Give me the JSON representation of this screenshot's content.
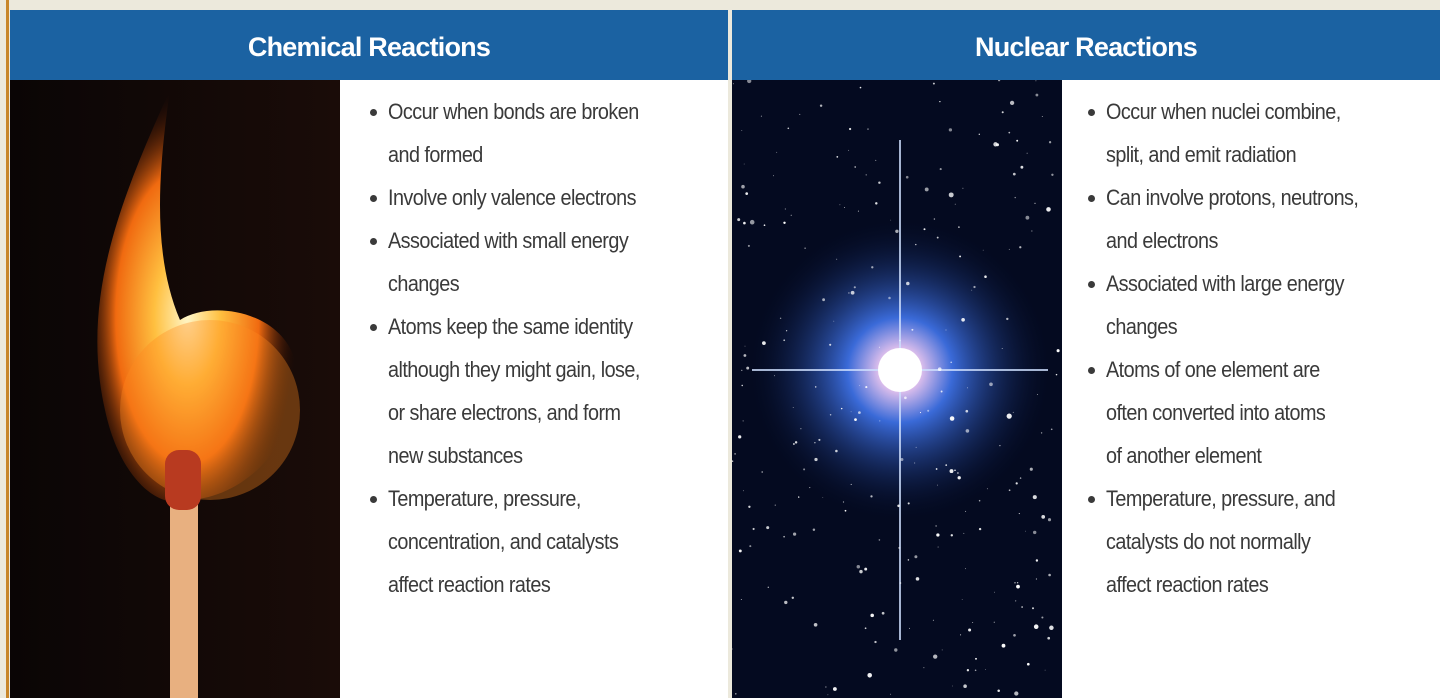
{
  "columns": [
    {
      "title": "Chemical Reactions",
      "items": [
        [
          "Occur when bonds are broken",
          "and formed"
        ],
        [
          "Involve only valence electrons"
        ],
        [
          "Associated with small energy",
          "changes"
        ],
        [
          "Atoms keep the same identity",
          "although they might gain, lose,",
          "or share electrons, and form",
          "new substances"
        ],
        [
          "Temperature, pressure,",
          "concentration, and catalysts",
          "affect reaction rates"
        ]
      ]
    },
    {
      "title": "Nuclear Reactions",
      "items": [
        [
          "Occur when nuclei combine,",
          "split, and emit radiation"
        ],
        [
          "Can involve protons, neutrons,",
          "and electrons"
        ],
        [
          "Associated with large energy",
          "changes"
        ],
        [
          "Atoms of one element are",
          "often converted into atoms",
          "of another element"
        ],
        [
          "Temperature, pressure, and",
          "catalysts do not normally",
          "affect reaction rates"
        ]
      ]
    }
  ]
}
